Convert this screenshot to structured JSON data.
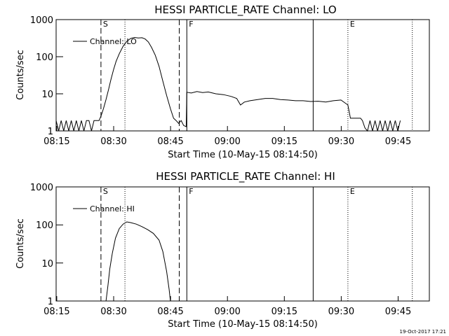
{
  "footer": {
    "timestamp": "19-Oct-2017 17:21"
  },
  "chart_data": [
    {
      "type": "line",
      "title": "HESSI PARTICLE_RATE Channel: LO",
      "xlabel": "Start Time (10-May-15 08:14:50)",
      "ylabel": "Counts/sec",
      "y_scale": "log",
      "ylim": [
        1,
        1000
      ],
      "xlim": [
        "08:14:50",
        "09:53:20"
      ],
      "x_ticks": [
        "08:15",
        "08:30",
        "08:45",
        "09:00",
        "09:15",
        "09:30",
        "09:45"
      ],
      "y_ticks": [
        "1",
        "10",
        "100",
        "1000"
      ],
      "legend": {
        "position": "top-left",
        "entries": [
          "Channel: LO"
        ]
      },
      "grid": false,
      "markers": [
        {
          "label": "S",
          "time": "08:26:40",
          "style": "dashed"
        },
        {
          "label": "",
          "time": "08:33:00",
          "style": "dotted"
        },
        {
          "label": "",
          "time": "08:47:20",
          "style": "dashed"
        },
        {
          "label": "F",
          "time": "08:49:20",
          "style": "solid"
        },
        {
          "label": "",
          "time": "09:22:40",
          "style": "solid"
        },
        {
          "label": "E",
          "time": "09:31:50",
          "style": "dotted"
        },
        {
          "label": "",
          "time": "09:48:50",
          "style": "dotted"
        }
      ],
      "series": [
        {
          "name": "Channel: LO",
          "points": [
            [
              "08:14:50",
              1.9
            ],
            [
              "08:15:30",
              1
            ],
            [
              "08:16:10",
              1.9
            ],
            [
              "08:16:50",
              1
            ],
            [
              "08:17:30",
              1.9
            ],
            [
              "08:18:10",
              1
            ],
            [
              "08:18:50",
              1.9
            ],
            [
              "08:19:30",
              1
            ],
            [
              "08:20:10",
              1.9
            ],
            [
              "08:20:50",
              1
            ],
            [
              "08:21:30",
              1.9
            ],
            [
              "08:22:10",
              1
            ],
            [
              "08:22:50",
              1.9
            ],
            [
              "08:23:30",
              1.9
            ],
            [
              "08:24:10",
              1
            ],
            [
              "08:24:50",
              1.9
            ],
            [
              "08:25:30",
              1.9
            ],
            [
              "08:26:10",
              1.9
            ],
            [
              "08:26:40",
              2.5
            ],
            [
              "08:27:20",
              4
            ],
            [
              "08:28:00",
              7
            ],
            [
              "08:28:40",
              13
            ],
            [
              "08:29:20",
              25
            ],
            [
              "08:30:00",
              45
            ],
            [
              "08:30:40",
              75
            ],
            [
              "08:31:30",
              120
            ],
            [
              "08:32:30",
              190
            ],
            [
              "08:33:30",
              260
            ],
            [
              "08:34:30",
              310
            ],
            [
              "08:35:30",
              330
            ],
            [
              "08:36:30",
              320
            ],
            [
              "08:37:30",
              325
            ],
            [
              "08:38:20",
              300
            ],
            [
              "08:39:10",
              250
            ],
            [
              "08:40:00",
              180
            ],
            [
              "08:41:00",
              110
            ],
            [
              "08:42:00",
              55
            ],
            [
              "08:43:00",
              22
            ],
            [
              "08:44:00",
              9
            ],
            [
              "08:45:00",
              4
            ],
            [
              "08:45:50",
              2.2
            ],
            [
              "08:46:30",
              1.9
            ],
            [
              "08:47:10",
              1.6
            ],
            [
              "08:47:50",
              1.9
            ],
            [
              "08:48:30",
              1.4
            ],
            [
              "08:49:10",
              1.3
            ],
            [
              "08:49:20",
              11
            ],
            [
              "08:50:30",
              10.5
            ],
            [
              "08:52:00",
              11.5
            ],
            [
              "08:53:30",
              10.8
            ],
            [
              "08:55:00",
              11.2
            ],
            [
              "08:57:00",
              10
            ],
            [
              "08:59:00",
              9.5
            ],
            [
              "09:01:00",
              8.5
            ],
            [
              "09:02:30",
              7.5
            ],
            [
              "09:03:30",
              5
            ],
            [
              "09:04:30",
              6
            ],
            [
              "09:06:00",
              6.5
            ],
            [
              "09:08:00",
              7
            ],
            [
              "09:10:00",
              7.5
            ],
            [
              "09:12:00",
              7.5
            ],
            [
              "09:14:00",
              7
            ],
            [
              "09:16:00",
              6.8
            ],
            [
              "09:18:00",
              6.5
            ],
            [
              "09:20:00",
              6.5
            ],
            [
              "09:22:00",
              6.2
            ],
            [
              "09:24:00",
              6.3
            ],
            [
              "09:26:00",
              6
            ],
            [
              "09:28:00",
              6.5
            ],
            [
              "09:30:00",
              6.8
            ],
            [
              "09:31:50",
              5
            ],
            [
              "09:32:30",
              2.2
            ],
            [
              "09:34:30",
              2.2
            ],
            [
              "09:35:10",
              2.2
            ],
            [
              "09:35:40",
              1.9
            ],
            [
              "09:36:20",
              1.2
            ],
            [
              "09:37:00",
              1
            ],
            [
              "09:37:40",
              1.9
            ],
            [
              "09:38:20",
              1
            ],
            [
              "09:39:00",
              1.9
            ],
            [
              "09:39:40",
              1
            ],
            [
              "09:40:20",
              1.9
            ],
            [
              "09:41:00",
              1
            ],
            [
              "09:41:40",
              1.9
            ],
            [
              "09:42:20",
              1
            ],
            [
              "09:43:00",
              1.9
            ],
            [
              "09:43:40",
              1
            ],
            [
              "09:44:20",
              1.9
            ],
            [
              "09:45:00",
              1
            ],
            [
              "09:45:40",
              1.9
            ]
          ]
        }
      ]
    },
    {
      "type": "line",
      "title": "HESSI PARTICLE_RATE Channel: HI",
      "xlabel": "Start Time (10-May-15 08:14:50)",
      "ylabel": "Counts/sec",
      "y_scale": "log",
      "ylim": [
        1,
        1000
      ],
      "xlim": [
        "08:14:50",
        "09:53:20"
      ],
      "x_ticks": [
        "08:15",
        "08:30",
        "08:45",
        "09:00",
        "09:15",
        "09:30",
        "09:45"
      ],
      "y_ticks": [
        "1",
        "10",
        "100",
        "1000"
      ],
      "legend": {
        "position": "top-left",
        "entries": [
          "Channel: HI"
        ]
      },
      "grid": false,
      "markers": [
        {
          "label": "S",
          "time": "08:26:40",
          "style": "dashed"
        },
        {
          "label": "",
          "time": "08:33:00",
          "style": "dotted"
        },
        {
          "label": "",
          "time": "08:47:20",
          "style": "dashed"
        },
        {
          "label": "F",
          "time": "08:49:20",
          "style": "solid"
        },
        {
          "label": "",
          "time": "09:22:40",
          "style": "solid"
        },
        {
          "label": "E",
          "time": "09:31:50",
          "style": "dotted"
        },
        {
          "label": "",
          "time": "09:48:50",
          "style": "dotted"
        }
      ],
      "series": [
        {
          "name": "Channel: HI",
          "points": [
            [
              "08:28:00",
              1
            ],
            [
              "08:28:30",
              2.5
            ],
            [
              "08:29:00",
              7
            ],
            [
              "08:29:40",
              18
            ],
            [
              "08:30:30",
              45
            ],
            [
              "08:31:30",
              80
            ],
            [
              "08:32:30",
              105
            ],
            [
              "08:33:30",
              120
            ],
            [
              "08:34:30",
              115
            ],
            [
              "08:36:00",
              105
            ],
            [
              "08:37:30",
              90
            ],
            [
              "08:39:00",
              75
            ],
            [
              "08:40:30",
              60
            ],
            [
              "08:42:00",
              40
            ],
            [
              "08:43:00",
              20
            ],
            [
              "08:44:00",
              6
            ],
            [
              "08:44:40",
              2
            ],
            [
              "08:45:00",
              1
            ]
          ]
        }
      ]
    }
  ]
}
